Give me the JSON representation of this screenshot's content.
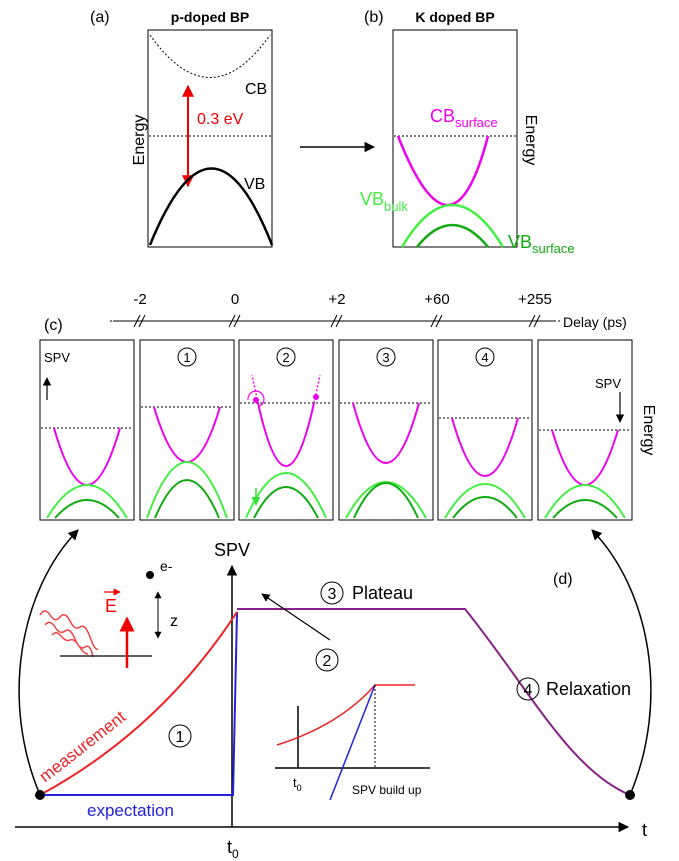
{
  "panel_a": {
    "label": "(a)",
    "title": "p-doped  BP",
    "cb": "CB",
    "vb": "VB",
    "gap": "0.3 eV",
    "axis": "Energy"
  },
  "panel_b": {
    "label": "(b)",
    "title": "K doped BP",
    "cb": "CB",
    "cb_sub": "surface",
    "vb_bulk": "VB",
    "vb_bulk_sub": "bulk",
    "vb_surface": "VB",
    "vb_surface_sub": "surface",
    "axis": "Energy"
  },
  "panel_c": {
    "label": "(c)",
    "delays": [
      "-2",
      "0",
      "+2",
      "+60",
      "+255"
    ],
    "delay_label": "Delay (ps)",
    "steps": [
      "1",
      "2",
      "3",
      "4"
    ],
    "spv_start": "SPV",
    "spv_end": "SPV",
    "axis": "Energy"
  },
  "panel_d": {
    "label": "(d)",
    "y_axis": "SPV",
    "x_axis": "t",
    "t0": "t",
    "t0_sub": "0",
    "electron": "e-",
    "field": "E",
    "z": "z",
    "measurement": "measurement",
    "expectation": "expectation",
    "step1": "1",
    "step2": "2",
    "step3": "3",
    "step4": "4",
    "plateau": "Plateau",
    "relaxation": "Relaxation",
    "inset_t0": "t",
    "inset_t0_sub": "0",
    "build_up": "SPV build up"
  }
}
